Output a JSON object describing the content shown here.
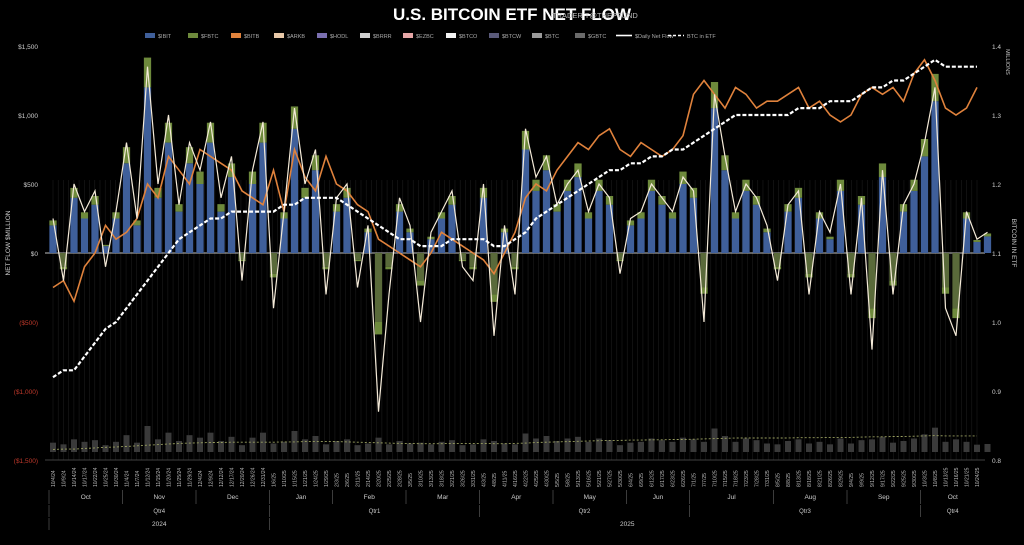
{
  "title": "U.S. BITCOIN ETF NET FLOW",
  "subtitle": "TRADER T@THEPFUND",
  "chart_data": {
    "type": "bar",
    "legend": [
      {
        "name": "$IBIT",
        "color": "#3f5f9a",
        "kind": "bar"
      },
      {
        "name": "$FBTC",
        "color": "#6e8a3c",
        "kind": "bar"
      },
      {
        "name": "$BITB",
        "color": "#e0823c",
        "kind": "bar"
      },
      {
        "name": "$ARKB",
        "color": "#e8c8a8",
        "kind": "bar"
      },
      {
        "name": "$HODL",
        "color": "#7a6fb0",
        "kind": "bar"
      },
      {
        "name": "$BRRR",
        "color": "#d0d0d0",
        "kind": "bar"
      },
      {
        "name": "$EZBC",
        "color": "#e6a6a6",
        "kind": "bar"
      },
      {
        "name": "$BTCO",
        "color": "#f2f2f2",
        "kind": "bar"
      },
      {
        "name": "$BTCW",
        "color": "#5a5a7a",
        "kind": "bar"
      },
      {
        "name": "$BTC",
        "color": "#9a9a9a",
        "kind": "bar"
      },
      {
        "name": "$GBTC",
        "color": "#6a6a6a",
        "kind": "bar"
      },
      {
        "name": "$Daily Net Flow",
        "color": "#ffffff",
        "kind": "line"
      },
      {
        "name": "BTC in ETF",
        "color": "#ffffff",
        "kind": "dashed-line"
      }
    ],
    "ylabel_left": "NET FLOW $MILLION",
    "ylabel_right": "BITCOIN IN ETF",
    "right_unit": "MILLIONS",
    "left_ticks": [
      "$1,500",
      "$1,000",
      "$500",
      "$0",
      "($500)",
      "($1,000)",
      "($1,500)"
    ],
    "left_tick_values": [
      1500,
      1000,
      500,
      0,
      -500,
      -1000,
      -1500
    ],
    "right_ticks": [
      "1.4",
      "1.3",
      "1.2",
      "1.1",
      "1.0",
      "0.9",
      "0.8"
    ],
    "ylim_left": [
      -1500,
      1500
    ],
    "ylim_right": [
      0.8,
      1.4
    ],
    "x_dates": [
      "10/4/24",
      "10/9/24",
      "10/14/24",
      "10/17/24",
      "10/22/24",
      "10/25/24",
      "10/30/24",
      "11/4/24",
      "11/7/24",
      "11/12/24",
      "11/15/24",
      "11/20/24",
      "11/25/24",
      "11/29/24",
      "12/4/24",
      "12/9/24",
      "12/12/24",
      "12/17/24",
      "12/20/24",
      "12/26/24",
      "12/31/24",
      "1/6/25",
      "1/10/25",
      "1/15/25",
      "1/21/25",
      "1/24/25",
      "1/29/25",
      "2/3/25",
      "2/6/25",
      "2/11/25",
      "2/14/25",
      "2/20/25",
      "2/25/25",
      "2/28/25",
      "3/5/25",
      "3/10/25",
      "3/13/25",
      "3/18/25",
      "3/21/25",
      "3/26/25",
      "3/31/25",
      "4/3/25",
      "4/8/25",
      "4/11/25",
      "4/16/25",
      "4/22/25",
      "4/25/25",
      "4/30/25",
      "5/5/25",
      "5/8/25",
      "5/13/25",
      "5/16/25",
      "5/21/25",
      "5/27/25",
      "5/30/25",
      "6/4/25",
      "6/9/25",
      "6/12/25",
      "6/17/25",
      "6/23/25",
      "6/26/25",
      "7/1/25",
      "7/7/25",
      "7/10/25",
      "7/15/25",
      "7/18/25",
      "7/23/25",
      "7/28/25",
      "7/31/25",
      "8/5/25",
      "8/8/25",
      "8/13/25",
      "8/18/25",
      "8/21/25",
      "8/26/25",
      "8/29/25",
      "9/4/25",
      "9/9/25",
      "9/12/25",
      "9/17/25",
      "9/22/25",
      "9/25/25",
      "9/30/25",
      "10/3/25",
      "10/8/25",
      "10/13/25",
      "10/16/25",
      "10/21/25",
      "10/24/25"
    ],
    "months": [
      {
        "label": "Oct",
        "span": [
          0,
          7
        ]
      },
      {
        "label": "Nov",
        "span": [
          7,
          14
        ]
      },
      {
        "label": "Dec",
        "span": [
          14,
          21
        ]
      },
      {
        "label": "Jan",
        "span": [
          21,
          27
        ]
      },
      {
        "label": "Feb",
        "span": [
          27,
          34
        ]
      },
      {
        "label": "Mar",
        "span": [
          34,
          41
        ]
      },
      {
        "label": "Apr",
        "span": [
          41,
          48
        ]
      },
      {
        "label": "May",
        "span": [
          48,
          55
        ]
      },
      {
        "label": "Jun",
        "span": [
          55,
          61
        ]
      },
      {
        "label": "Jul",
        "span": [
          61,
          69
        ]
      },
      {
        "label": "Aug",
        "span": [
          69,
          76
        ]
      },
      {
        "label": "Sep",
        "span": [
          76,
          83
        ]
      },
      {
        "label": "Oct",
        "span": [
          83,
          89
        ]
      }
    ],
    "quarters": [
      {
        "label": "Qtr4",
        "span": [
          0,
          21
        ]
      },
      {
        "label": "Qtr1",
        "span": [
          21,
          41
        ]
      },
      {
        "label": "Qtr2",
        "span": [
          41,
          61
        ]
      },
      {
        "label": "Qtr3",
        "span": [
          61,
          83
        ]
      },
      {
        "label": "Qtr4",
        "span": [
          83,
          89
        ]
      }
    ],
    "years": [
      {
        "label": "2024",
        "span": [
          0,
          21
        ]
      },
      {
        "label": "2025",
        "span": [
          21,
          89
        ]
      }
    ],
    "daily_net_flow": [
      250,
      -200,
      500,
      300,
      450,
      -100,
      300,
      800,
      250,
      1350,
      500,
      1000,
      350,
      800,
      600,
      950,
      400,
      700,
      -200,
      600,
      950,
      -400,
      300,
      1050,
      500,
      750,
      -300,
      400,
      500,
      -250,
      200,
      -1150,
      -300,
      400,
      200,
      -500,
      150,
      300,
      450,
      -100,
      -200,
      500,
      -600,
      200,
      -300,
      900,
      550,
      700,
      350,
      500,
      600,
      300,
      500,
      400,
      -150,
      250,
      300,
      500,
      400,
      300,
      550,
      450,
      -500,
      1150,
      700,
      300,
      500,
      400,
      200,
      -200,
      350,
      450,
      -300,
      300,
      150,
      500,
      -300,
      400,
      -700,
      600,
      -300,
      350,
      500,
      800,
      1200,
      -400,
      -600,
      300,
      100,
      150
    ],
    "ibit_bar": [
      200,
      -100,
      400,
      250,
      350,
      50,
      250,
      650,
      200,
      1200,
      400,
      800,
      300,
      650,
      500,
      800,
      300,
      550,
      -50,
      500,
      800,
      -150,
      250,
      900,
      400,
      600,
      -100,
      300,
      400,
      -50,
      150,
      -500,
      -100,
      300,
      150,
      -200,
      100,
      250,
      350,
      -50,
      -100,
      400,
      -300,
      150,
      -100,
      750,
      450,
      600,
      300,
      450,
      550,
      250,
      450,
      350,
      -50,
      200,
      250,
      450,
      350,
      250,
      500,
      400,
      -250,
      1050,
      600,
      250,
      450,
      350,
      150,
      -100,
      300,
      400,
      -150,
      250,
      100,
      450,
      -150,
      350,
      -400,
      550,
      -200,
      300,
      450,
      700,
      1100,
      -250,
      -400,
      250,
      80,
      120
    ],
    "btc_price_series": [
      1.05,
      1.06,
      1.03,
      1.08,
      1.1,
      1.14,
      1.12,
      1.13,
      1.15,
      1.2,
      1.18,
      1.24,
      1.22,
      1.2,
      1.25,
      1.24,
      1.23,
      1.22,
      1.19,
      1.18,
      1.17,
      1.22,
      1.16,
      1.25,
      1.21,
      1.19,
      1.24,
      1.2,
      1.19,
      1.17,
      1.16,
      1.12,
      1.11,
      1.1,
      1.09,
      1.08,
      1.1,
      1.13,
      1.12,
      1.11,
      1.1,
      1.09,
      1.07,
      1.1,
      1.13,
      1.18,
      1.2,
      1.19,
      1.22,
      1.24,
      1.26,
      1.25,
      1.27,
      1.28,
      1.25,
      1.24,
      1.26,
      1.25,
      1.24,
      1.25,
      1.27,
      1.33,
      1.35,
      1.33,
      1.31,
      1.34,
      1.33,
      1.31,
      1.32,
      1.32,
      1.33,
      1.34,
      1.31,
      1.32,
      1.3,
      1.29,
      1.3,
      1.33,
      1.34,
      1.33,
      1.34,
      1.32,
      1.36,
      1.38,
      1.35,
      1.31,
      1.3,
      1.31,
      1.34
    ],
    "btc_in_etf": [
      0.92,
      0.93,
      0.93,
      0.95,
      0.97,
      0.99,
      1.0,
      1.02,
      1.04,
      1.06,
      1.08,
      1.1,
      1.12,
      1.13,
      1.14,
      1.15,
      1.15,
      1.16,
      1.16,
      1.16,
      1.16,
      1.16,
      1.17,
      1.17,
      1.18,
      1.18,
      1.18,
      1.18,
      1.17,
      1.16,
      1.15,
      1.14,
      1.13,
      1.12,
      1.12,
      1.11,
      1.11,
      1.11,
      1.12,
      1.12,
      1.12,
      1.12,
      1.11,
      1.11,
      1.12,
      1.13,
      1.15,
      1.16,
      1.17,
      1.18,
      1.19,
      1.2,
      1.21,
      1.22,
      1.22,
      1.23,
      1.23,
      1.24,
      1.24,
      1.25,
      1.25,
      1.26,
      1.27,
      1.28,
      1.29,
      1.3,
      1.3,
      1.3,
      1.3,
      1.3,
      1.3,
      1.31,
      1.31,
      1.31,
      1.32,
      1.32,
      1.32,
      1.33,
      1.34,
      1.34,
      1.35,
      1.35,
      1.36,
      1.37,
      1.38,
      1.37,
      1.37,
      1.37,
      1.37
    ],
    "volume_bars_note": ""
  }
}
